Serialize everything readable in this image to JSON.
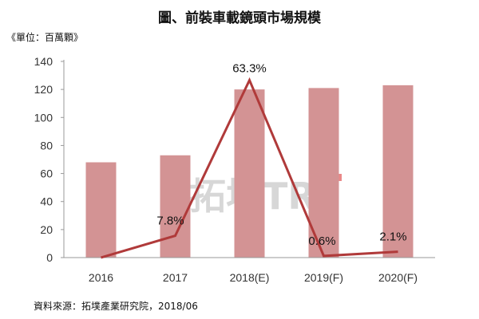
{
  "chart_data": {
    "type": "bar+line",
    "title": "圖、前裝車載鏡頭市場規模",
    "unit_label": "《單位：百萬顆》",
    "categories": [
      "2016",
      "2017",
      "2018(E)",
      "2019(F)",
      "2020(F)"
    ],
    "series": [
      {
        "type": "bar",
        "values": [
          68,
          73,
          120,
          121,
          123
        ],
        "color": "#d39394"
      },
      {
        "type": "line",
        "values": [
          0,
          7.8,
          63.3,
          0.6,
          2.1
        ],
        "labels": [
          "",
          "7.8%",
          "63.3%",
          "0.6%",
          "2.1%"
        ],
        "color": "#b03a3a",
        "scale": "percent"
      }
    ],
    "y_axis": {
      "min": 0,
      "max": 140,
      "step": 20,
      "ticks": [
        "0",
        "20",
        "40",
        "60",
        "80",
        "100",
        "120",
        "140"
      ]
    },
    "secondary_axis_range": [
      0,
      70
    ],
    "gridlines": false,
    "legend": "none",
    "watermark": "拓墣TRI",
    "source_note": "資料來源：拓墣產業研究院，2018/06"
  }
}
